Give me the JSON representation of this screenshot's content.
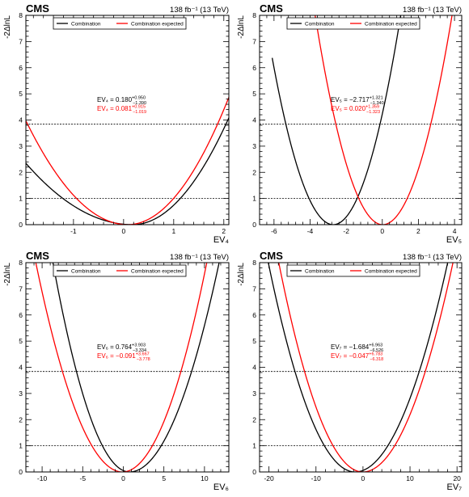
{
  "experiment_label": "CMS",
  "luminosity_label": "138 fb⁻¹ (13 TeV)",
  "ylabel": "-2ΔlnL",
  "legend": [
    "Combination",
    "Combination expected"
  ],
  "colors": {
    "observed": "#000000",
    "expected": "#ff0000",
    "reference": "#000000"
  },
  "chart_data": [
    {
      "type": "line",
      "xlabel": "EV₄",
      "ylabel": "-2ΔlnL",
      "xlim": [
        -1.95,
        2.1
      ],
      "ylim": [
        0,
        8
      ],
      "xticks": [
        -1,
        0,
        1,
        2
      ],
      "yticks": [
        0,
        1,
        2,
        3,
        4,
        5,
        6,
        7,
        8
      ],
      "reference_lines": [
        1,
        3.84
      ],
      "legend_position": "top",
      "annotation": {
        "observed": {
          "label": "EV₄ = 0.180",
          "up": "+0.950",
          "down": "−1.390"
        },
        "expected": {
          "label": "EV₄ = 0.081",
          "up": "+0.915",
          "down": "−1.019"
        }
      },
      "series": [
        {
          "name": "Combination",
          "color": "#000000",
          "min": 0.18,
          "sigma_minus": 1.39,
          "sigma_plus": 0.95
        },
        {
          "name": "Combination expected",
          "color": "#ff0000",
          "min": 0.081,
          "sigma_minus": 1.019,
          "sigma_plus": 0.915
        }
      ]
    },
    {
      "type": "line",
      "xlabel": "EV₅",
      "ylabel": "-2ΔlnL",
      "xlim": [
        -6.8,
        4.4
      ],
      "ylim": [
        0,
        8
      ],
      "xticks": [
        -6,
        -4,
        -2,
        0,
        2,
        4
      ],
      "yticks": [
        0,
        1,
        2,
        3,
        4,
        5,
        6,
        7,
        8
      ],
      "reference_lines": [
        1,
        3.84
      ],
      "legend_position": "top",
      "annotation": {
        "observed": {
          "label": "EV₅ = −2.717",
          "up": "+1.321",
          "down": "−1.340"
        },
        "expected": {
          "label": "EV₅ = 0.020",
          "up": "+1.359",
          "down": "−1.323"
        }
      },
      "series": [
        {
          "name": "Combination",
          "color": "#000000",
          "min": -2.717,
          "sigma_minus": 1.34,
          "sigma_plus": 1.321,
          "x_start": -6.1
        },
        {
          "name": "Combination expected",
          "color": "#ff0000",
          "min": 0.02,
          "sigma_minus": 1.323,
          "sigma_plus": 1.359
        }
      ]
    },
    {
      "type": "line",
      "xlabel": "EV₆",
      "ylabel": "-2ΔlnL",
      "xlim": [
        -12,
        13
      ],
      "ylim": [
        0,
        8
      ],
      "xticks": [
        -10,
        -5,
        0,
        5,
        10
      ],
      "yticks": [
        0,
        1,
        2,
        3,
        4,
        5,
        6,
        7,
        8
      ],
      "reference_lines": [
        1,
        3.84
      ],
      "legend_position": "top",
      "annotation": {
        "observed": {
          "label": "EV₆ = 0.764",
          "up": "+3.903",
          "down": "−3.334"
        },
        "expected": {
          "label": "EV₆ = −0.091",
          "up": "+3.667",
          "down": "−3.778"
        }
      },
      "series": [
        {
          "name": "Combination",
          "color": "#000000",
          "min": 0.764,
          "sigma_minus": 3.334,
          "sigma_plus": 3.903
        },
        {
          "name": "Combination expected",
          "color": "#ff0000",
          "min": -0.091,
          "sigma_minus": 3.778,
          "sigma_plus": 3.667
        }
      ]
    },
    {
      "type": "line",
      "xlabel": "EV₇",
      "ylabel": "-2ΔlnL",
      "xlim": [
        -22,
        21
      ],
      "ylim": [
        0,
        8
      ],
      "xticks": [
        -20,
        -10,
        0,
        10,
        20
      ],
      "yticks": [
        0,
        1,
        2,
        3,
        4,
        5,
        6,
        7,
        8
      ],
      "reference_lines": [
        1,
        3.84
      ],
      "legend_position": "top",
      "annotation": {
        "observed": {
          "label": "EV₇ = −1.684",
          "up": "+6.963",
          "down": "−6.526"
        },
        "expected": {
          "label": "EV₇ = −0.047",
          "up": "+6.783",
          "down": "−6.318"
        }
      },
      "series": [
        {
          "name": "Combination",
          "color": "#000000",
          "min": -1.684,
          "sigma_minus": 6.526,
          "sigma_plus": 6.963
        },
        {
          "name": "Combination expected",
          "color": "#ff0000",
          "min": -0.047,
          "sigma_minus": 6.318,
          "sigma_plus": 6.783
        }
      ]
    }
  ]
}
